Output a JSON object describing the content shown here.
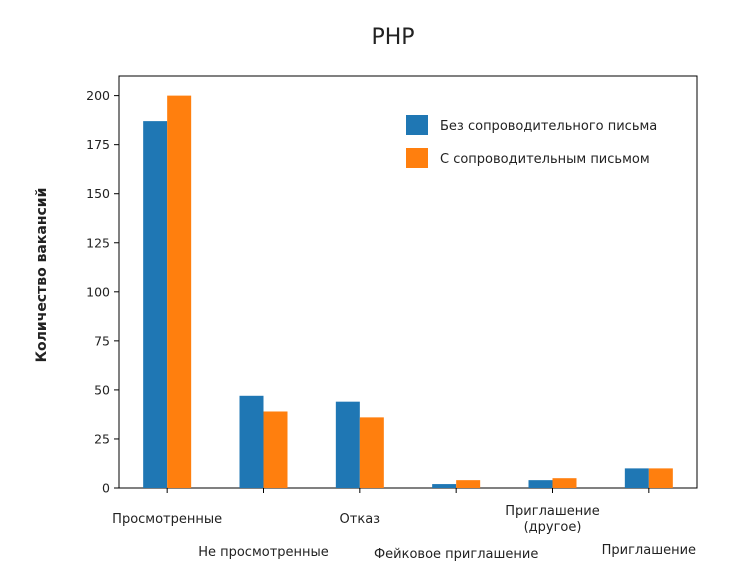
{
  "chart_data": {
    "type": "bar",
    "title": "PHP",
    "xlabel": "",
    "ylabel": "Количество вакансий",
    "ylim": [
      0,
      210
    ],
    "yticks": [
      0,
      25,
      50,
      75,
      100,
      125,
      150,
      175,
      200
    ],
    "grid": false,
    "legend_position": "top-right",
    "categories": [
      "Просмотренные",
      "Не просмотренные",
      "Отказ",
      "Фейковое приглашение",
      "Приглашение (другое)",
      "Приглашение"
    ],
    "series": [
      {
        "name": "Без сопроводительного письма",
        "color": "#1f77b4",
        "values": [
          187,
          47,
          44,
          2,
          4,
          10
        ]
      },
      {
        "name": "С сопроводительным письмом",
        "color": "#ff7f0e",
        "values": [
          200,
          39,
          36,
          4,
          5,
          10
        ]
      }
    ]
  }
}
